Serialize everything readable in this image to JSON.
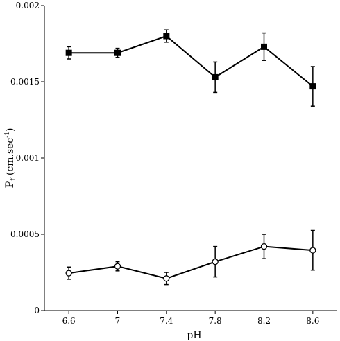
{
  "chart_data": {
    "type": "line",
    "xlabel": "pH",
    "ylabel_main": "P",
    "ylabel_sub": "f",
    "ylabel_unit": "(cm.sec",
    "ylabel_sup": "-1",
    "ylabel_close": ")",
    "x": [
      6.6,
      7,
      7.4,
      7.8,
      8.2,
      8.6
    ],
    "x_tick_labels": [
      "6.6",
      "7",
      "7.4",
      "7.8",
      "8.2",
      "8.6"
    ],
    "xlim": [
      6.4,
      8.8
    ],
    "ylim": [
      0,
      0.002
    ],
    "y_ticks": [
      0,
      0.0005,
      0.001,
      0.0015,
      0.002
    ],
    "y_tick_labels": [
      "0",
      "0.0005",
      "0.001",
      "0.0015",
      "0.002"
    ],
    "grid": false,
    "series": [
      {
        "marker": "filled-square",
        "values": [
          0.00169,
          0.00169,
          0.0018,
          0.00153,
          0.00173,
          0.00147
        ],
        "error": [
          4e-05,
          3e-05,
          4e-05,
          0.0001,
          9e-05,
          0.00013
        ]
      },
      {
        "marker": "open-circle",
        "values": [
          0.000245,
          0.00029,
          0.00021,
          0.00032,
          0.00042,
          0.000395
        ],
        "error": [
          4e-05,
          3e-05,
          4e-05,
          0.0001,
          8e-05,
          0.00013
        ]
      }
    ]
  }
}
